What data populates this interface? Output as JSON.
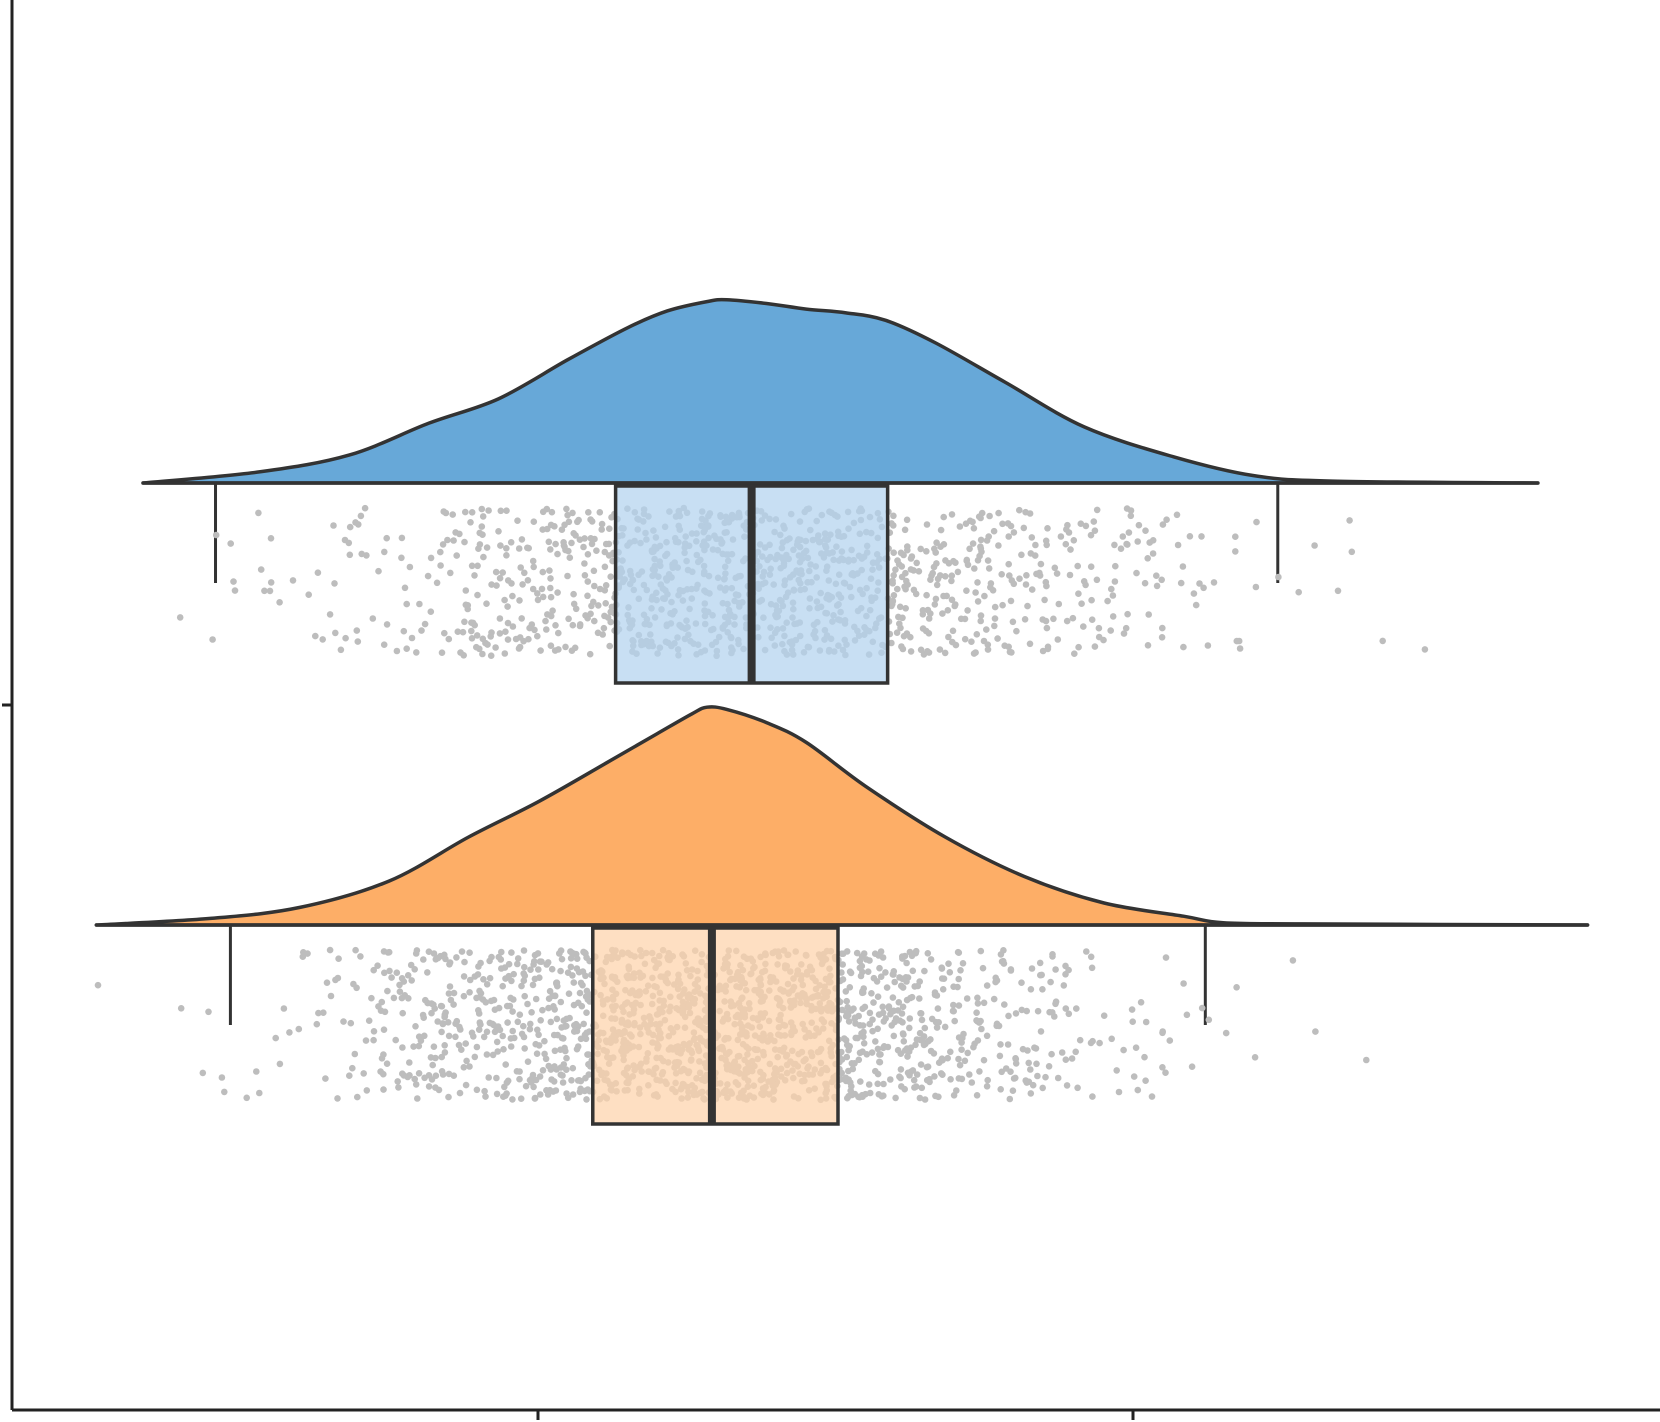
{
  "chart_data": {
    "type": "raincloud",
    "title": "",
    "xlabel": "",
    "ylabel": "",
    "x_ticks": [
      "",
      ""
    ],
    "grid": false,
    "legend": "none",
    "colors": {
      "group_1": "#67a8d8",
      "group_1_box": "#b3d3ee",
      "group_2": "#fdae67",
      "group_2_box": "#fdd2ab",
      "points": "#bdbdbd",
      "line": "#333333"
    },
    "xlim": [
      0,
      1660
    ],
    "density_ylim": [
      0,
      1
    ],
    "groups": [
      {
        "whiskers": [
          205,
          1275
        ],
        "box": [
          608,
          882
        ],
        "median": 745,
        "density": [
          [
            132,
            0
          ],
          [
            250,
            0.06
          ],
          [
            340,
            0.15
          ],
          [
            420,
            0.32
          ],
          [
            490,
            0.45
          ],
          [
            560,
            0.66
          ],
          [
            620,
            0.83
          ],
          [
            660,
            0.92
          ],
          [
            700,
            0.97
          ],
          [
            720,
            0.98
          ],
          [
            760,
            0.96
          ],
          [
            800,
            0.93
          ],
          [
            840,
            0.91
          ],
          [
            880,
            0.87
          ],
          [
            930,
            0.75
          ],
          [
            1000,
            0.54
          ],
          [
            1080,
            0.3
          ],
          [
            1170,
            0.14
          ],
          [
            1250,
            0.04
          ],
          [
            1330,
            0.01
          ],
          [
            1537,
            0
          ]
        ]
      },
      {
        "whiskers": [
          220,
          1202
        ],
        "box": [
          585,
          832
        ],
        "median": 705,
        "density": [
          [
            85,
            0
          ],
          [
            200,
            0.03
          ],
          [
            290,
            0.08
          ],
          [
            380,
            0.2
          ],
          [
            460,
            0.4
          ],
          [
            530,
            0.56
          ],
          [
            600,
            0.74
          ],
          [
            650,
            0.87
          ],
          [
            685,
            0.96
          ],
          [
            700,
            0.99
          ],
          [
            720,
            0.98
          ],
          [
            760,
            0.92
          ],
          [
            800,
            0.83
          ],
          [
            860,
            0.63
          ],
          [
            940,
            0.4
          ],
          [
            1020,
            0.22
          ],
          [
            1100,
            0.1
          ],
          [
            1180,
            0.04
          ],
          [
            1220,
            0.01
          ],
          [
            1300,
            0.005
          ],
          [
            1587,
            0
          ]
        ]
      }
    ]
  }
}
